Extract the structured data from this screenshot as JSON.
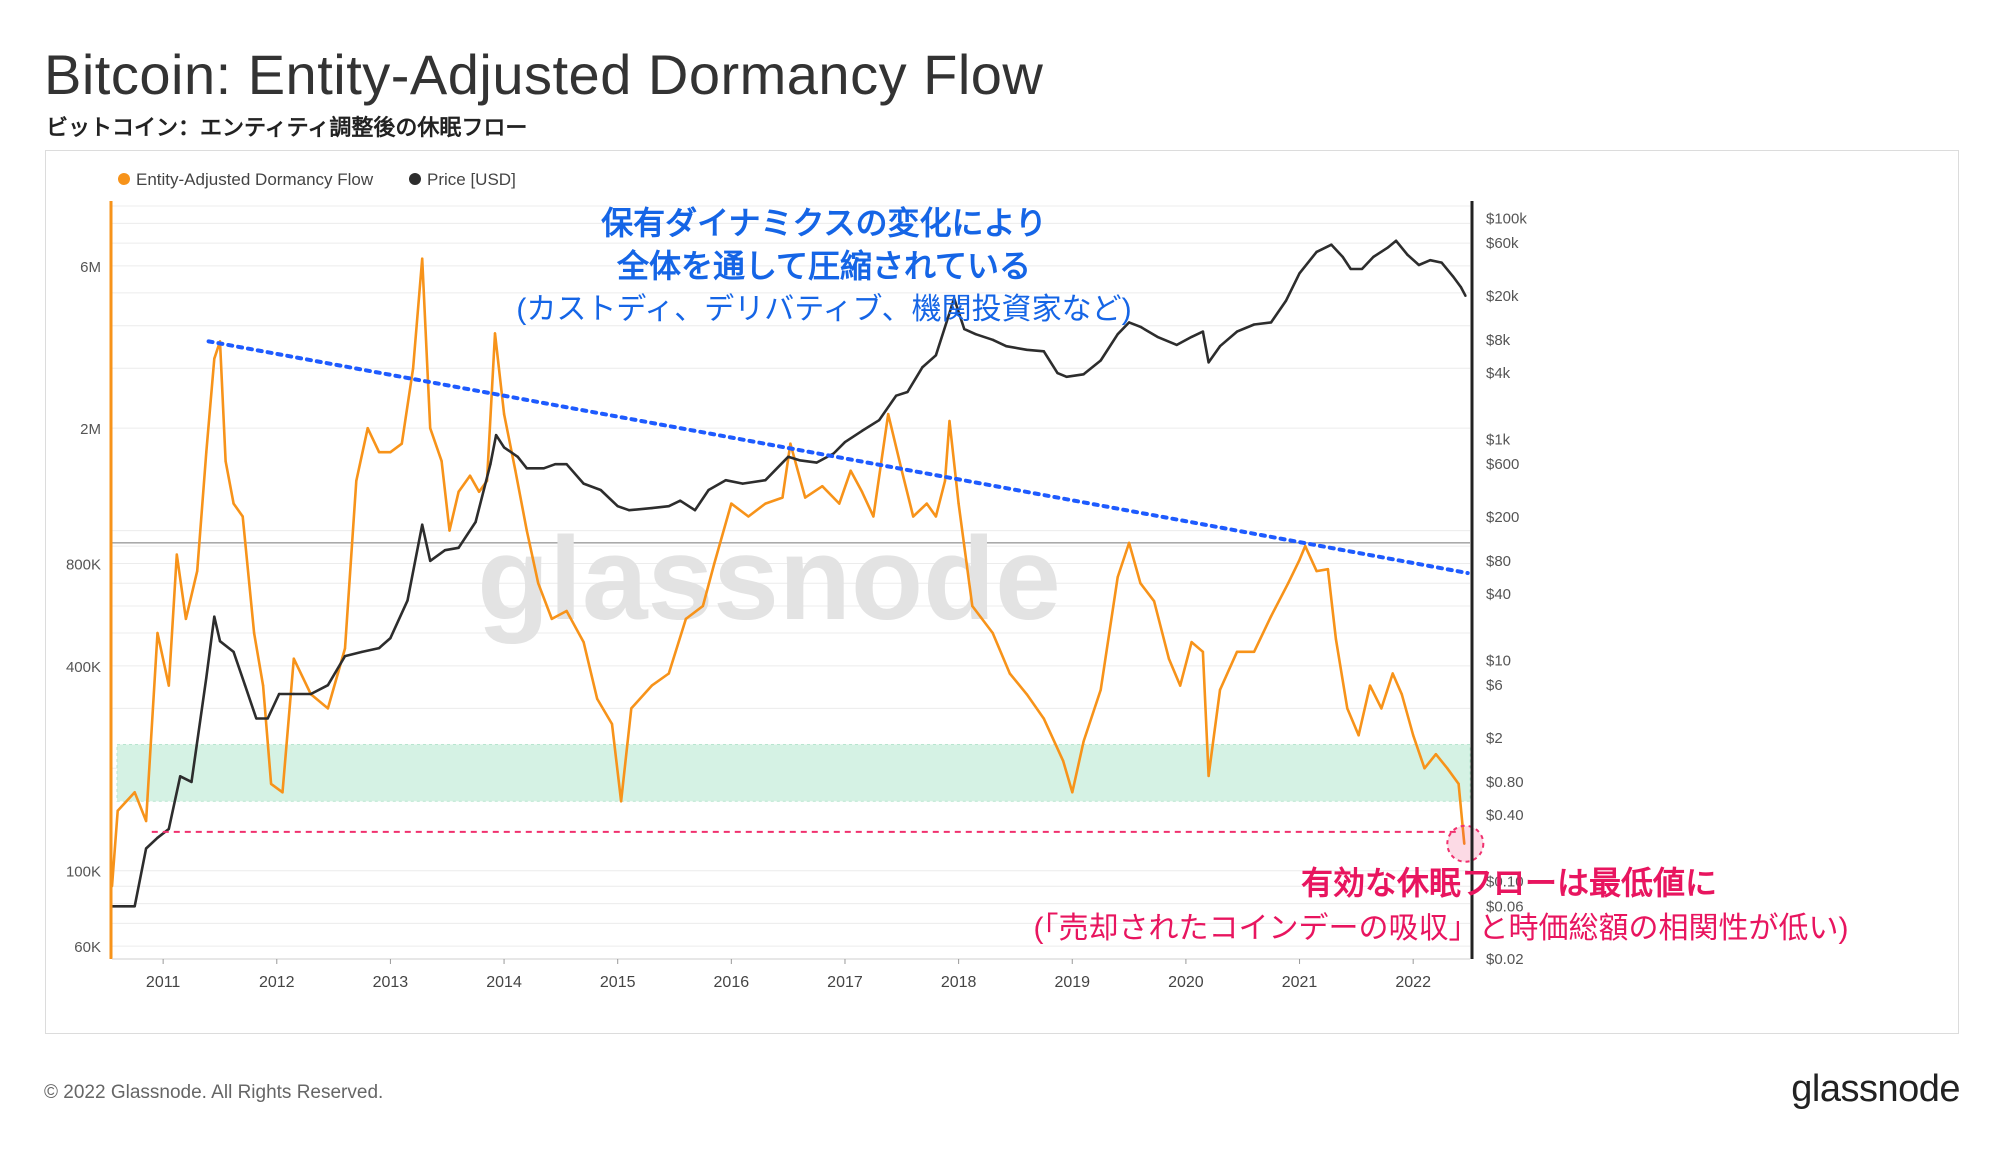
{
  "header": {
    "title": "Bitcoin: Entity-Adjusted Dormancy Flow",
    "subtitle": "ビットコイン：エンティティ調整後の休眠フロー"
  },
  "footer": {
    "copyright": "© 2022 Glassnode. All Rights Reserved.",
    "logo": "glassnode"
  },
  "watermark": "glassnode",
  "annotations": {
    "top_line1": "保有ダイナミクスの変化により",
    "top_line2": "全体を通して圧縮されている",
    "top_line3": "(カストディ、デリバティブ、機関投資家など)",
    "bottom_line1": "有効な休眠フローは最低値に",
    "bottom_line2": "(「売却されたコインデーの吸収」と時価総額の相関性が低い)"
  },
  "colors": {
    "dormancy": "#f7931a",
    "price": "#2d2d2d",
    "trend": "#1e5bff",
    "low_line": "#f0306e",
    "band": "#d5f2e4",
    "annotation_blue": "#1565e6",
    "annotation_pink": "#e8155f"
  },
  "chart_data": {
    "type": "line",
    "x_axis": {
      "ticks": [
        "2011",
        "2012",
        "2013",
        "2014",
        "2015",
        "2016",
        "2017",
        "2018",
        "2019",
        "2020",
        "2021",
        "2022"
      ],
      "range": [
        2010.55,
        2022.5
      ]
    },
    "y_left": {
      "scale": "log",
      "range": [
        55000,
        9000000
      ],
      "ticks": [
        {
          "value": 60000,
          "label": "60K"
        },
        {
          "value": 100000,
          "label": "100K"
        },
        {
          "value": 400000,
          "label": "400K"
        },
        {
          "value": 800000,
          "label": "800K"
        },
        {
          "value": 2000000,
          "label": "2M"
        },
        {
          "value": 6000000,
          "label": "6M"
        }
      ]
    },
    "y_right": {
      "scale": "log",
      "range": [
        0.02,
        130000
      ],
      "ticks": [
        {
          "value": 0.02,
          "label": "$0.02"
        },
        {
          "value": 0.06,
          "label": "$0.06"
        },
        {
          "value": 0.1,
          "label": "$0.10"
        },
        {
          "value": 0.4,
          "label": "$0.40"
        },
        {
          "value": 0.8,
          "label": "$0.80"
        },
        {
          "value": 2,
          "label": "$2"
        },
        {
          "value": 6,
          "label": "$6"
        },
        {
          "value": 10,
          "label": "$10"
        },
        {
          "value": 40,
          "label": "$40"
        },
        {
          "value": 80,
          "label": "$80"
        },
        {
          "value": 200,
          "label": "$200"
        },
        {
          "value": 600,
          "label": "$600"
        },
        {
          "value": 1000,
          "label": "$1k"
        },
        {
          "value": 4000,
          "label": "$4k"
        },
        {
          "value": 8000,
          "label": "$8k"
        },
        {
          "value": 20000,
          "label": "$20k"
        },
        {
          "value": 60000,
          "label": "$60k"
        },
        {
          "value": 100000,
          "label": "$100k"
        }
      ]
    },
    "series": [
      {
        "name": "Entity-Adjusted Dormancy Flow",
        "axis": "left",
        "points": [
          [
            2010.55,
            90000
          ],
          [
            2010.6,
            150000
          ],
          [
            2010.75,
            170000
          ],
          [
            2010.85,
            140000
          ],
          [
            2010.95,
            500000
          ],
          [
            2011.05,
            350000
          ],
          [
            2011.12,
            850000
          ],
          [
            2011.2,
            550000
          ],
          [
            2011.3,
            760000
          ],
          [
            2011.38,
            1700000
          ],
          [
            2011.45,
            3200000
          ],
          [
            2011.5,
            3600000
          ],
          [
            2011.55,
            1600000
          ],
          [
            2011.62,
            1200000
          ],
          [
            2011.7,
            1100000
          ],
          [
            2011.8,
            500000
          ],
          [
            2011.88,
            350000
          ],
          [
            2011.95,
            180000
          ],
          [
            2012.05,
            170000
          ],
          [
            2012.15,
            420000
          ],
          [
            2012.3,
            330000
          ],
          [
            2012.45,
            300000
          ],
          [
            2012.6,
            450000
          ],
          [
            2012.7,
            1400000
          ],
          [
            2012.8,
            2000000
          ],
          [
            2012.9,
            1700000
          ],
          [
            2013.0,
            1700000
          ],
          [
            2013.1,
            1800000
          ],
          [
            2013.2,
            3000000
          ],
          [
            2013.28,
            6300000
          ],
          [
            2013.35,
            2000000
          ],
          [
            2013.45,
            1600000
          ],
          [
            2013.52,
            1000000
          ],
          [
            2013.6,
            1300000
          ],
          [
            2013.7,
            1450000
          ],
          [
            2013.78,
            1300000
          ],
          [
            2013.85,
            1400000
          ],
          [
            2013.92,
            3800000
          ],
          [
            2014.0,
            2200000
          ],
          [
            2014.1,
            1500000
          ],
          [
            2014.2,
            1000000
          ],
          [
            2014.3,
            700000
          ],
          [
            2014.42,
            550000
          ],
          [
            2014.55,
            580000
          ],
          [
            2014.7,
            470000
          ],
          [
            2014.82,
            320000
          ],
          [
            2014.95,
            270000
          ],
          [
            2015.03,
            160000
          ],
          [
            2015.12,
            300000
          ],
          [
            2015.3,
            350000
          ],
          [
            2015.45,
            380000
          ],
          [
            2015.6,
            550000
          ],
          [
            2015.75,
            600000
          ],
          [
            2015.85,
            800000
          ],
          [
            2016.0,
            1200000
          ],
          [
            2016.15,
            1100000
          ],
          [
            2016.3,
            1200000
          ],
          [
            2016.45,
            1250000
          ],
          [
            2016.52,
            1800000
          ],
          [
            2016.65,
            1250000
          ],
          [
            2016.8,
            1350000
          ],
          [
            2016.95,
            1200000
          ],
          [
            2017.05,
            1500000
          ],
          [
            2017.15,
            1300000
          ],
          [
            2017.25,
            1100000
          ],
          [
            2017.38,
            2200000
          ],
          [
            2017.5,
            1500000
          ],
          [
            2017.6,
            1100000
          ],
          [
            2017.72,
            1200000
          ],
          [
            2017.8,
            1100000
          ],
          [
            2017.88,
            1400000
          ],
          [
            2017.92,
            2100000
          ],
          [
            2018.0,
            1200000
          ],
          [
            2018.12,
            600000
          ],
          [
            2018.3,
            500000
          ],
          [
            2018.45,
            380000
          ],
          [
            2018.6,
            330000
          ],
          [
            2018.75,
            280000
          ],
          [
            2018.92,
            210000
          ],
          [
            2019.0,
            170000
          ],
          [
            2019.1,
            240000
          ],
          [
            2019.25,
            340000
          ],
          [
            2019.4,
            730000
          ],
          [
            2019.5,
            920000
          ],
          [
            2019.6,
            700000
          ],
          [
            2019.72,
            620000
          ],
          [
            2019.85,
            420000
          ],
          [
            2019.95,
            350000
          ],
          [
            2020.05,
            470000
          ],
          [
            2020.15,
            440000
          ],
          [
            2020.2,
            190000
          ],
          [
            2020.3,
            340000
          ],
          [
            2020.45,
            440000
          ],
          [
            2020.6,
            440000
          ],
          [
            2020.75,
            560000
          ],
          [
            2020.9,
            700000
          ],
          [
            2021.0,
            820000
          ],
          [
            2021.05,
            900000
          ],
          [
            2021.15,
            760000
          ],
          [
            2021.25,
            770000
          ],
          [
            2021.32,
            480000
          ],
          [
            2021.42,
            300000
          ],
          [
            2021.52,
            250000
          ],
          [
            2021.62,
            350000
          ],
          [
            2021.72,
            300000
          ],
          [
            2021.82,
            380000
          ],
          [
            2021.9,
            330000
          ],
          [
            2022.0,
            250000
          ],
          [
            2022.1,
            200000
          ],
          [
            2022.2,
            220000
          ],
          [
            2022.3,
            200000
          ],
          [
            2022.4,
            180000
          ],
          [
            2022.45,
            120000
          ]
        ]
      },
      {
        "name": "Price [USD]",
        "axis": "right",
        "points": [
          [
            2010.55,
            0.06
          ],
          [
            2010.65,
            0.06
          ],
          [
            2010.75,
            0.06
          ],
          [
            2010.85,
            0.2
          ],
          [
            2010.95,
            0.25
          ],
          [
            2011.05,
            0.3
          ],
          [
            2011.15,
            0.9
          ],
          [
            2011.25,
            0.8
          ],
          [
            2011.38,
            7
          ],
          [
            2011.45,
            25
          ],
          [
            2011.5,
            15
          ],
          [
            2011.62,
            12
          ],
          [
            2011.72,
            6
          ],
          [
            2011.82,
            3
          ],
          [
            2011.92,
            3
          ],
          [
            2012.02,
            5
          ],
          [
            2012.15,
            5
          ],
          [
            2012.3,
            5
          ],
          [
            2012.45,
            6
          ],
          [
            2012.6,
            11
          ],
          [
            2012.75,
            12
          ],
          [
            2012.9,
            13
          ],
          [
            2013.0,
            16
          ],
          [
            2013.15,
            35
          ],
          [
            2013.28,
            170
          ],
          [
            2013.35,
            80
          ],
          [
            2013.48,
            100
          ],
          [
            2013.6,
            105
          ],
          [
            2013.75,
            180
          ],
          [
            2013.88,
            600
          ],
          [
            2013.93,
            1100
          ],
          [
            2014.0,
            850
          ],
          [
            2014.12,
            700
          ],
          [
            2014.2,
            550
          ],
          [
            2014.35,
            550
          ],
          [
            2014.45,
            600
          ],
          [
            2014.55,
            600
          ],
          [
            2014.7,
            400
          ],
          [
            2014.85,
            350
          ],
          [
            2015.0,
            250
          ],
          [
            2015.1,
            230
          ],
          [
            2015.3,
            240
          ],
          [
            2015.45,
            250
          ],
          [
            2015.55,
            280
          ],
          [
            2015.68,
            230
          ],
          [
            2015.8,
            350
          ],
          [
            2015.95,
            430
          ],
          [
            2016.1,
            400
          ],
          [
            2016.3,
            430
          ],
          [
            2016.5,
            700
          ],
          [
            2016.6,
            650
          ],
          [
            2016.75,
            620
          ],
          [
            2016.9,
            750
          ],
          [
            2017.0,
            950
          ],
          [
            2017.15,
            1200
          ],
          [
            2017.3,
            1500
          ],
          [
            2017.45,
            2500
          ],
          [
            2017.55,
            2700
          ],
          [
            2017.68,
            4500
          ],
          [
            2017.8,
            5800
          ],
          [
            2017.92,
            14000
          ],
          [
            2017.96,
            19000
          ],
          [
            2018.05,
            10000
          ],
          [
            2018.15,
            9000
          ],
          [
            2018.3,
            8000
          ],
          [
            2018.42,
            7000
          ],
          [
            2018.6,
            6500
          ],
          [
            2018.75,
            6300
          ],
          [
            2018.87,
            4000
          ],
          [
            2018.95,
            3700
          ],
          [
            2019.1,
            3900
          ],
          [
            2019.25,
            5200
          ],
          [
            2019.4,
            9000
          ],
          [
            2019.5,
            11500
          ],
          [
            2019.6,
            10500
          ],
          [
            2019.75,
            8500
          ],
          [
            2019.92,
            7200
          ],
          [
            2020.05,
            8500
          ],
          [
            2020.15,
            9500
          ],
          [
            2020.2,
            5000
          ],
          [
            2020.3,
            7000
          ],
          [
            2020.45,
            9500
          ],
          [
            2020.6,
            11000
          ],
          [
            2020.75,
            11500
          ],
          [
            2020.88,
            18000
          ],
          [
            2021.0,
            32000
          ],
          [
            2021.15,
            50000
          ],
          [
            2021.28,
            58000
          ],
          [
            2021.38,
            45000
          ],
          [
            2021.45,
            35000
          ],
          [
            2021.55,
            35000
          ],
          [
            2021.65,
            45000
          ],
          [
            2021.78,
            55000
          ],
          [
            2021.85,
            63000
          ],
          [
            2021.95,
            47000
          ],
          [
            2022.05,
            38000
          ],
          [
            2022.15,
            42000
          ],
          [
            2022.25,
            40000
          ],
          [
            2022.35,
            30000
          ],
          [
            2022.42,
            24000
          ],
          [
            2022.46,
            20000
          ]
        ]
      }
    ],
    "legend": {
      "placement": "top-left",
      "entries": [
        "Entity-Adjusted Dormancy Flow",
        "Price [USD]"
      ]
    },
    "reference": {
      "trend_line": {
        "from": [
          2011.4,
          3600000
        ],
        "to": [
          2022.48,
          750000
        ]
      },
      "horizontal_line_value": 920000,
      "low_line_value": 130000,
      "band": [
        160000,
        235000
      ]
    },
    "grid": true
  }
}
